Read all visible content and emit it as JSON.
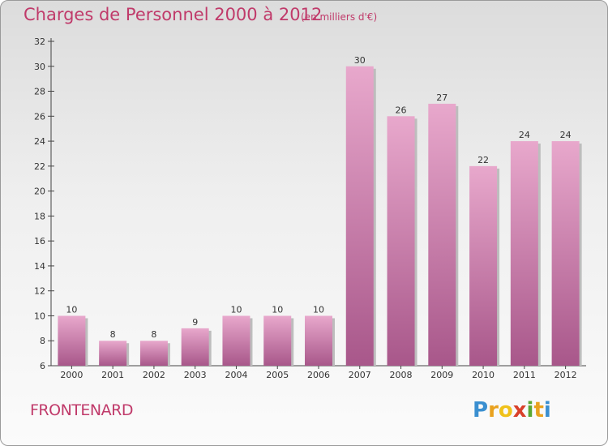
{
  "header": {
    "title": "Charges de Personnel 2000 à 2012",
    "subtitle": "(en milliers d'€)"
  },
  "commune_name": "FRONTENARD",
  "brand": {
    "letters": [
      "P",
      "r",
      "o",
      "x",
      "i",
      "t",
      "i"
    ],
    "colors": [
      "#3a8fd0",
      "#e9a21f",
      "#f0c21a",
      "#d9402a",
      "#5aa832",
      "#e9a21f",
      "#3a8fd0"
    ]
  },
  "chart_data": {
    "type": "bar",
    "title": "Charges de Personnel 2000 à 2012",
    "subtitle": "(en milliers d'€)",
    "categories": [
      "2000",
      "2001",
      "2002",
      "2003",
      "2004",
      "2005",
      "2006",
      "2007",
      "2008",
      "2009",
      "2010",
      "2011",
      "2012"
    ],
    "values": [
      10,
      8,
      8,
      9,
      10,
      10,
      10,
      30,
      26,
      27,
      22,
      24,
      24
    ],
    "ylim": [
      6,
      32
    ],
    "yticks": [
      6,
      8,
      10,
      12,
      14,
      16,
      18,
      20,
      22,
      24,
      26,
      28,
      30,
      32
    ],
    "grid": false,
    "bar_color": "#d67aa8",
    "bar_color_light": "#e8a8cc",
    "bar_color_dark": "#a8578a",
    "text_color": "#333333"
  }
}
